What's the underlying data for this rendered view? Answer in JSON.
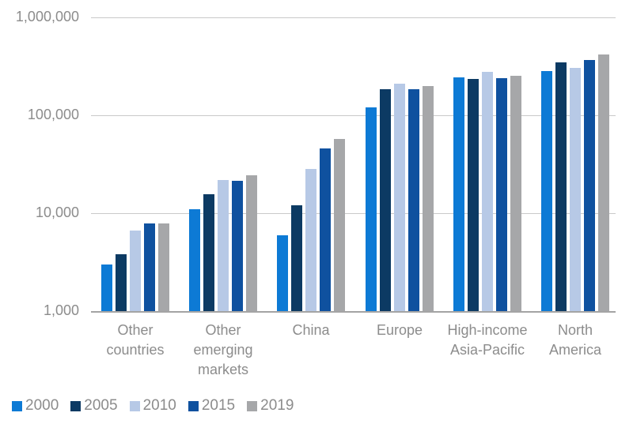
{
  "chart_data": {
    "type": "bar",
    "scale": "log",
    "title": "",
    "xlabel": "",
    "ylabel": "",
    "ylim": [
      1000,
      1000000
    ],
    "grid": true,
    "legend_position": "bottom-left",
    "y_ticks": [
      {
        "label": "1,000,000",
        "value": 1000000
      },
      {
        "label": "100,000",
        "value": 100000
      },
      {
        "label": "10,000",
        "value": 10000
      },
      {
        "label": "1,000",
        "value": 1000
      }
    ],
    "categories": [
      "Other countries",
      "Other emerging markets",
      "China",
      "Europe",
      "High-income Asia-Pacific",
      "North America"
    ],
    "series": [
      {
        "name": "2000",
        "color": "#0d7ad5",
        "values": [
          3000,
          11000,
          6000,
          120000,
          245000,
          285000
        ]
      },
      {
        "name": "2005",
        "color": "#0c3a63",
        "values": [
          3800,
          15500,
          12000,
          185000,
          235000,
          345000
        ]
      },
      {
        "name": "2010",
        "color": "#b7c9e6",
        "values": [
          6700,
          22000,
          28500,
          210000,
          280000,
          305000
        ]
      },
      {
        "name": "2015",
        "color": "#0f519f",
        "values": [
          7900,
          21500,
          46000,
          185000,
          240000,
          365000
        ]
      },
      {
        "name": "2019",
        "color": "#a6a7a9",
        "values": [
          7800,
          24500,
          57000,
          200000,
          255000,
          415000
        ]
      }
    ]
  },
  "colors": {
    "gridline": "#c9c9c9",
    "baseline": "#a4a4a4",
    "axis_text": "#8c8c8c",
    "background": "#ffffff"
  }
}
